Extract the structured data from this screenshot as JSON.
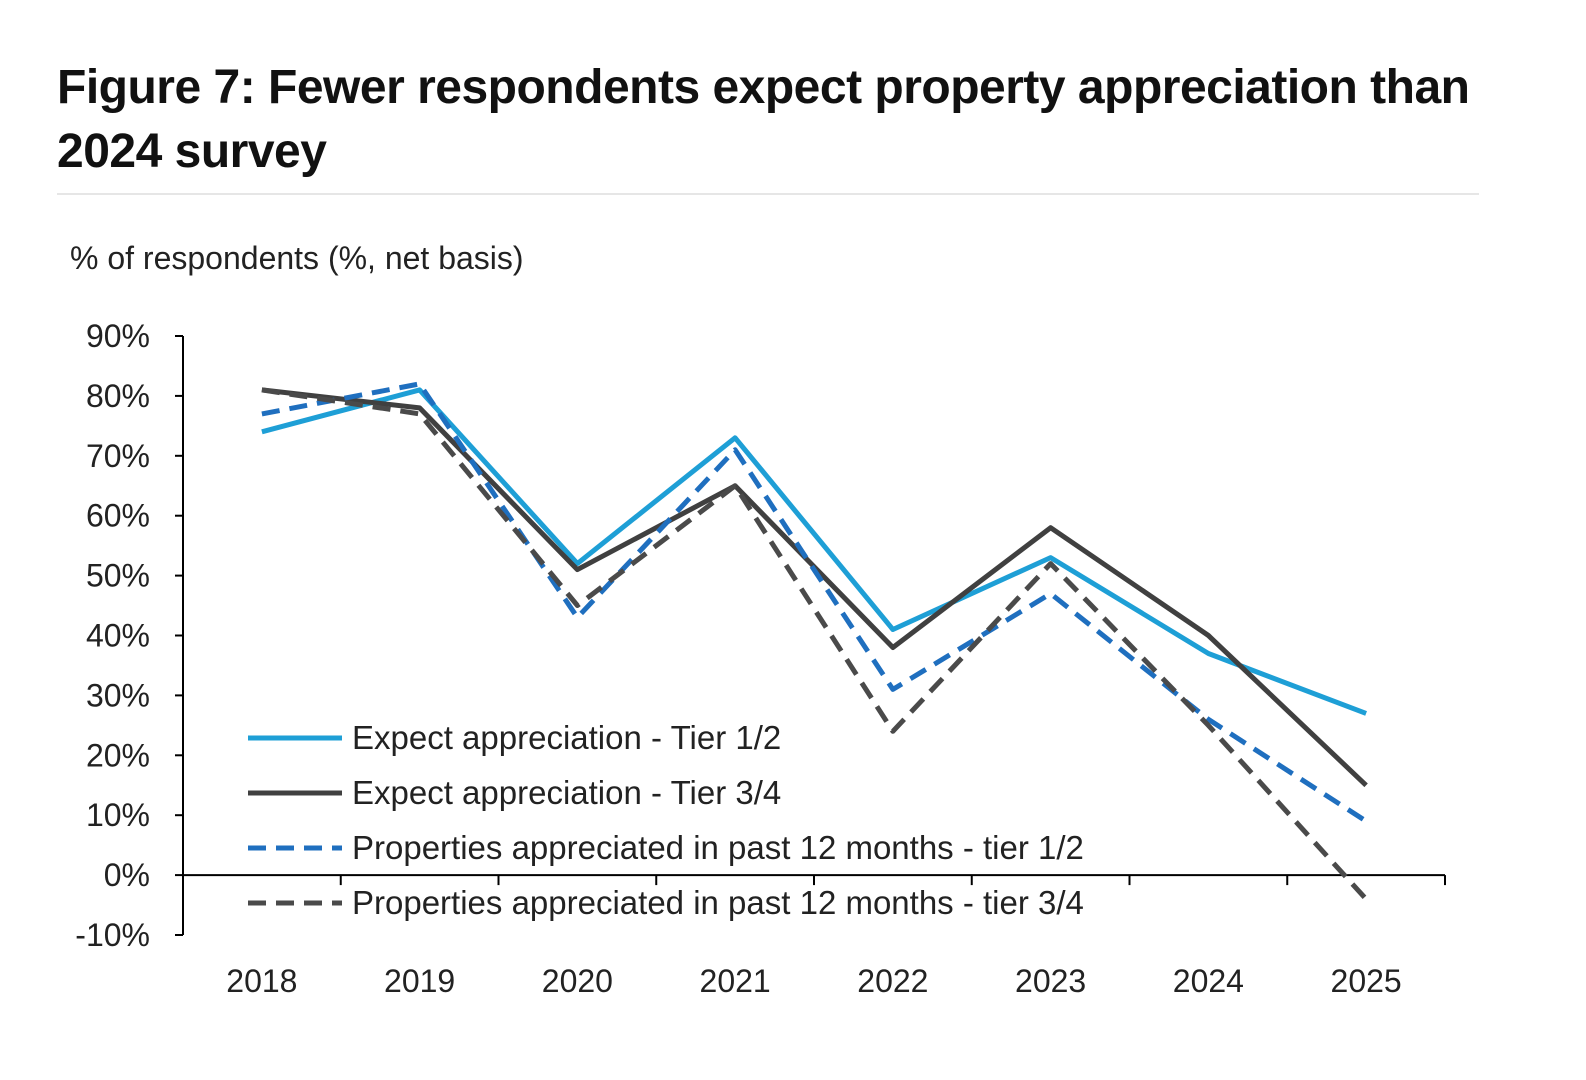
{
  "chart_data": {
    "type": "line",
    "title": "Figure 7: Fewer respondents expect property appreciation than 2024 survey",
    "ylabel": "% of respondents (%, net basis)",
    "xlabel": "",
    "categories": [
      "2018",
      "2019",
      "2020",
      "2021",
      "2022",
      "2023",
      "2024",
      "2025"
    ],
    "ylim": [
      -10,
      90
    ],
    "yticks": [
      -10,
      0,
      10,
      20,
      30,
      40,
      50,
      60,
      70,
      80,
      90
    ],
    "ytick_labels": [
      "-10%",
      "0%",
      "10%",
      "20%",
      "30%",
      "40%",
      "50%",
      "60%",
      "70%",
      "80%",
      "90%"
    ],
    "grid": false,
    "legend_position": "bottom-left",
    "series": [
      {
        "name": "Expect appreciation - Tier 1/2",
        "values": [
          74,
          81,
          52,
          73,
          41,
          53,
          37,
          27
        ],
        "color": "#1e9fd6",
        "dash": "solid"
      },
      {
        "name": "Expect appreciation - Tier 3/4",
        "values": [
          81,
          78,
          51,
          65,
          38,
          58,
          40,
          15
        ],
        "color": "#404040",
        "dash": "solid"
      },
      {
        "name": "Properties appreciated in past 12 months - tier 1/2",
        "values": [
          77,
          82,
          43,
          71,
          31,
          47,
          26,
          9
        ],
        "color": "#1f6fbf",
        "dash": "dashed"
      },
      {
        "name": "Properties appreciated in past 12 months - tier 3/4",
        "values": [
          81,
          77,
          45,
          65,
          24,
          52,
          25,
          -4
        ],
        "color": "#4a4a4a",
        "dash": "dashed"
      }
    ]
  }
}
